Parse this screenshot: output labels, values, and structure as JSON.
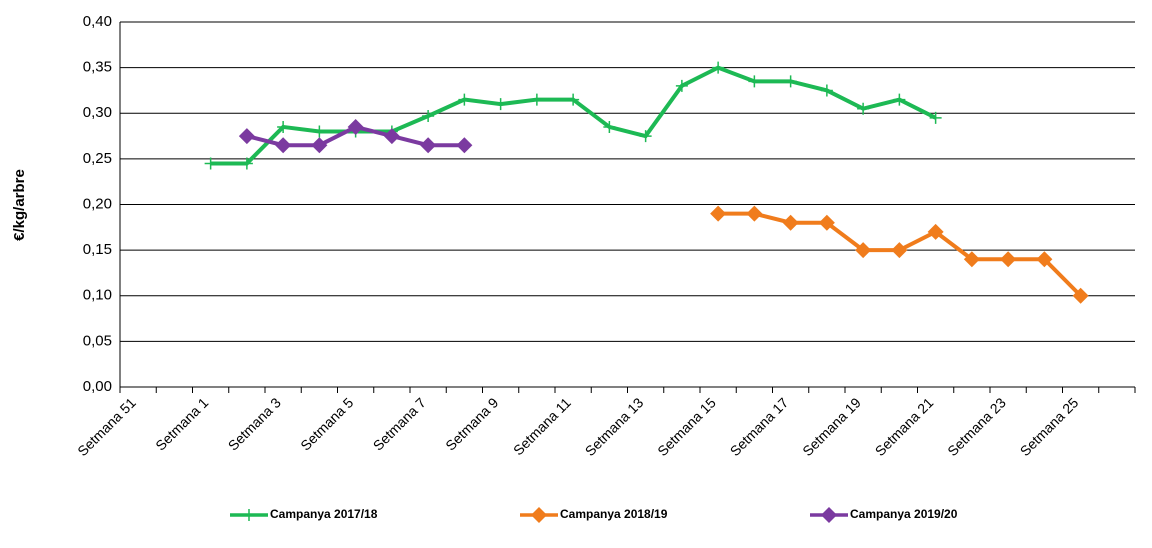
{
  "chart_data": {
    "type": "line",
    "y_label": "€/kg/arbre",
    "categories": [
      "Setmana 51",
      null,
      "Setmana 1",
      null,
      "Setmana 3",
      null,
      "Setmana 5",
      null,
      "Setmana 7",
      null,
      "Setmana 9",
      null,
      "Setmana 11",
      null,
      "Setmana 13",
      null,
      "Setmana 15",
      null,
      "Setmana 17",
      null,
      "Setmana 19",
      null,
      "Setmana 21",
      null,
      "Setmana 23",
      null,
      "Setmana 25",
      null
    ],
    "series": [
      {
        "name": "Campanya 2017/18",
        "color": "#1db954",
        "marker": "plus",
        "values": [
          null,
          null,
          0.245,
          0.245,
          0.285,
          0.28,
          0.28,
          0.28,
          0.297,
          0.315,
          0.31,
          0.315,
          0.315,
          0.285,
          0.275,
          0.33,
          0.35,
          0.335,
          0.335,
          0.325,
          0.305,
          0.315,
          0.295,
          null,
          null,
          null,
          null,
          null
        ]
      },
      {
        "name": "Campanya 2018/19",
        "color": "#f07c1c",
        "marker": "diamond",
        "values": [
          null,
          null,
          null,
          null,
          null,
          null,
          null,
          null,
          null,
          null,
          null,
          null,
          null,
          null,
          null,
          null,
          0.19,
          0.19,
          0.18,
          0.18,
          0.15,
          0.15,
          0.17,
          0.14,
          0.14,
          0.14,
          0.1,
          null
        ]
      },
      {
        "name": "Campanya 2019/20",
        "color": "#7b3aa0",
        "marker": "diamond",
        "values": [
          null,
          null,
          null,
          0.275,
          0.265,
          0.265,
          0.285,
          0.275,
          0.265,
          0.265,
          null,
          null,
          null,
          null,
          null,
          null,
          null,
          null,
          null,
          null,
          null,
          null,
          null,
          null,
          null,
          null,
          null,
          null
        ]
      }
    ],
    "ylim": [
      0,
      0.4
    ],
    "yticks": [
      {
        "value": 0,
        "label": "0,00"
      },
      {
        "value": 0.05,
        "label": "0,05"
      },
      {
        "value": 0.1,
        "label": "0,10"
      },
      {
        "value": 0.15,
        "label": "0,15"
      },
      {
        "value": 0.2,
        "label": "0,20"
      },
      {
        "value": 0.25,
        "label": "0,25"
      },
      {
        "value": 0.3,
        "label": "0,30"
      },
      {
        "value": 0.35,
        "label": "0,35"
      },
      {
        "value": 0.4,
        "label": "0,40"
      }
    ],
    "grid": true,
    "legend": "bottom"
  }
}
